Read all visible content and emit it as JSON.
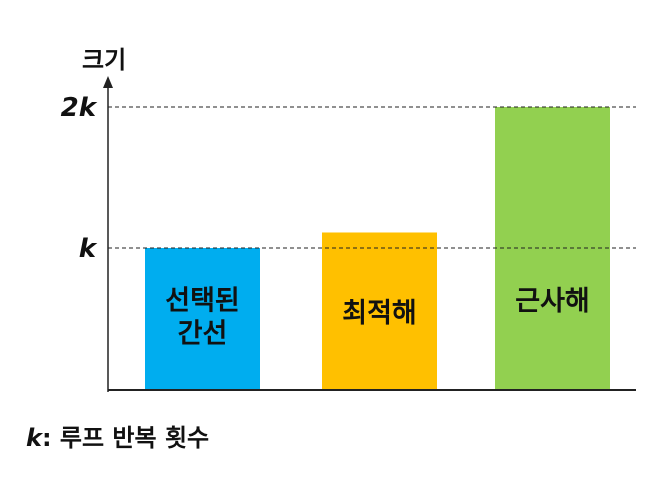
{
  "chart_data": {
    "type": "bar",
    "ylabel": "크기",
    "xlabel": "",
    "yticks": [
      {
        "label": "k",
        "value": 1
      },
      {
        "label": "2k",
        "value": 2
      }
    ],
    "ylim": [
      0,
      2.2
    ],
    "categories": [
      "선택된 간선",
      "최적해",
      "근사해"
    ],
    "category_lines": [
      [
        "선택된",
        "간선"
      ],
      [
        "최적해"
      ],
      [
        "근사해"
      ]
    ],
    "values": [
      1.0,
      1.11,
      2.0
    ],
    "colors": [
      "#00ADEF",
      "#FFC000",
      "#92D050"
    ],
    "reference_lines": [
      1,
      2
    ],
    "grid": false,
    "legend": "none",
    "footnote": {
      "symbol": "k",
      "text": ": 루프 반복 횟수"
    }
  }
}
